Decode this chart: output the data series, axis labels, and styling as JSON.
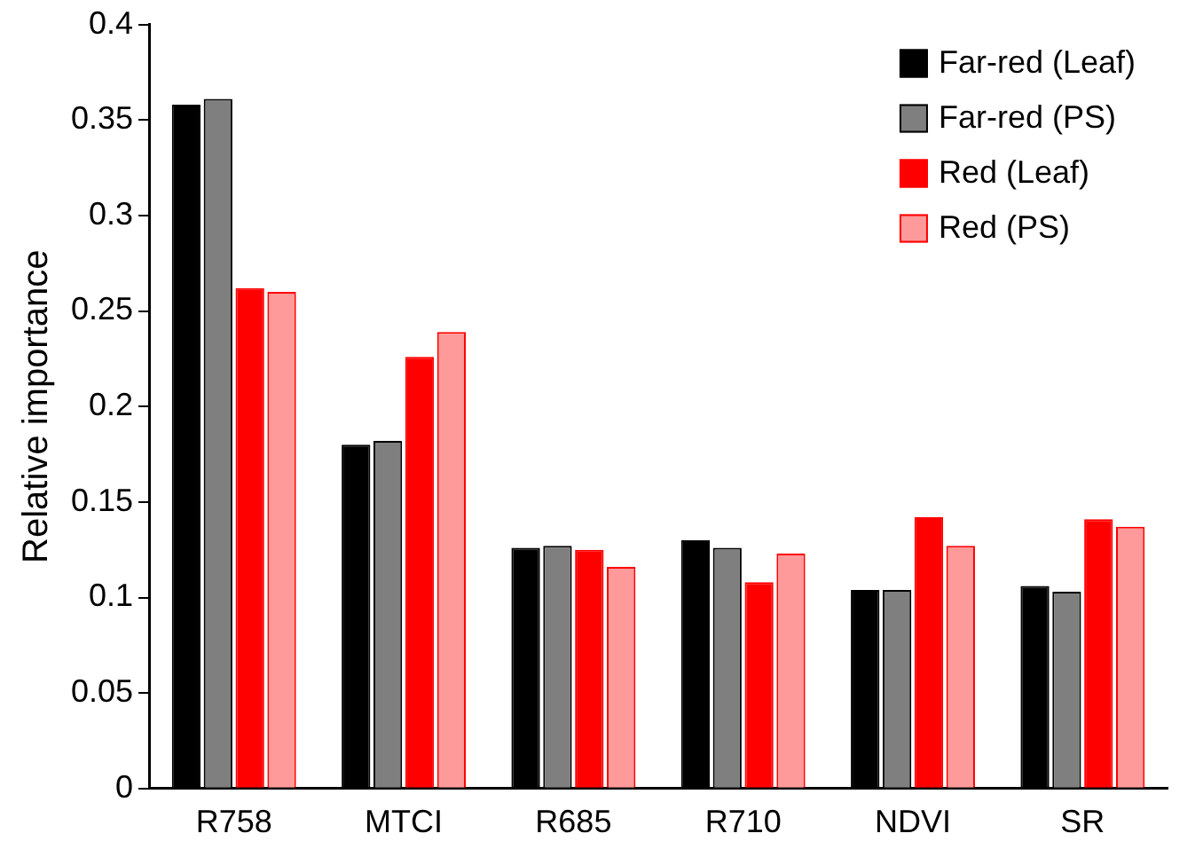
{
  "chart_data": {
    "type": "bar",
    "ylabel": "Relative importance",
    "categories": [
      "R758",
      "MTCI",
      "R685",
      "R710",
      "NDVI",
      "SR"
    ],
    "series": [
      {
        "name": "Far-red (Leaf)",
        "color": "#000000",
        "values": [
          0.358,
          0.18,
          0.126,
          0.13,
          0.104,
          0.106
        ]
      },
      {
        "name": "Far-red (PS)",
        "color": "#7f7f7f",
        "values": [
          0.361,
          0.182,
          0.127,
          0.126,
          0.104,
          0.103
        ]
      },
      {
        "name": "Red (Leaf)",
        "color": "#ff0000",
        "values": [
          0.262,
          0.226,
          0.125,
          0.108,
          0.142,
          0.141
        ]
      },
      {
        "name": "Red (PS)",
        "color": "#ff9a9a",
        "values": [
          0.26,
          0.239,
          0.116,
          0.123,
          0.127,
          0.137
        ]
      }
    ],
    "ylim": [
      0,
      0.4
    ],
    "yticks": [
      0,
      0.05,
      0.1,
      0.15,
      0.2,
      0.25,
      0.3,
      0.35,
      0.4
    ],
    "grid": false,
    "legend": "top right"
  }
}
